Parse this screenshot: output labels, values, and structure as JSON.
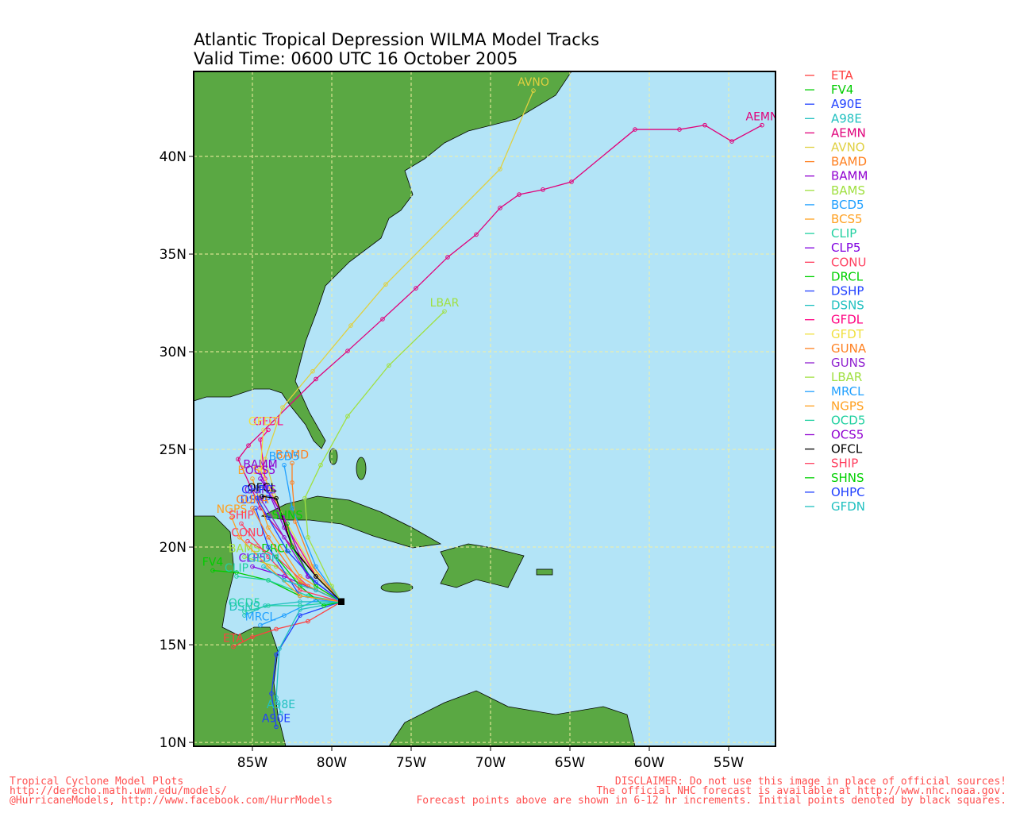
{
  "chart_data": {
    "type": "track-map",
    "title": "Atlantic Tropical Depression WILMA Model Tracks",
    "subtitle": "Valid Time: 0600 UTC 16 October 2005",
    "xlim": [
      -88.7,
      -52.05
    ],
    "ylim": [
      9.8,
      44.35
    ],
    "xticks": [
      {
        "value": -85,
        "label": "85W"
      },
      {
        "value": -80,
        "label": "80W"
      },
      {
        "value": -75,
        "label": "75W"
      },
      {
        "value": -70,
        "label": "70W"
      },
      {
        "value": -65,
        "label": "65W"
      },
      {
        "value": -60,
        "label": "60W"
      },
      {
        "value": -55,
        "label": "55W"
      }
    ],
    "yticks": [
      {
        "value": 10,
        "label": "10N"
      },
      {
        "value": 15,
        "label": "15N"
      },
      {
        "value": 20,
        "label": "20N"
      },
      {
        "value": 25,
        "label": "25N"
      },
      {
        "value": 30,
        "label": "30N"
      },
      {
        "value": 35,
        "label": "35N"
      },
      {
        "value": 40,
        "label": "40N"
      }
    ],
    "grid": true,
    "series": [
      {
        "name": "ETA",
        "color": "#ff4040",
        "lon": [
          -79.4,
          -81.5,
          -83.5,
          -85,
          -86.2
        ],
        "lat": [
          17.2,
          16.2,
          15.8,
          15.4,
          14.9
        ]
      },
      {
        "name": "FV4",
        "color": "#00cc00",
        "lon": [
          -79.4,
          -82,
          -84,
          -86,
          -87.5
        ],
        "lat": [
          17.2,
          17.5,
          18.3,
          18.7,
          18.8
        ]
      },
      {
        "name": "A90E",
        "color": "#2040ff",
        "lon": [
          -79.4,
          -82,
          -83.5,
          -83.8,
          -83.5
        ],
        "lat": [
          17.2,
          16.5,
          14.5,
          12.5,
          10.8
        ]
      },
      {
        "name": "A98E",
        "color": "#20c0c0",
        "lon": [
          -79.4,
          -82,
          -83.3,
          -83.5,
          -83.2
        ],
        "lat": [
          17.2,
          16.8,
          14.8,
          12.3,
          11.5
        ]
      },
      {
        "name": "AEMN",
        "color": "#e0007a",
        "lon": [
          -79.4,
          -82,
          -84.5,
          -85.9,
          -85.25,
          -81,
          -79,
          -76.8,
          -74.7,
          -72.7,
          -70.9,
          -69.4,
          -68.2,
          -66.7,
          -64.9,
          -60.9,
          -58.1,
          -56.5,
          -54.8,
          -52.9
        ],
        "lat": [
          17.2,
          19.5,
          22,
          24.5,
          25.2,
          28.6,
          30.04,
          31.67,
          33.25,
          34.84,
          36.0,
          37.36,
          38.05,
          38.3,
          38.7,
          41.38,
          41.38,
          41.6,
          40.77,
          41.6
        ]
      },
      {
        "name": "AVNO",
        "color": "#e0d040",
        "lon": [
          -79.4,
          -81,
          -82.5,
          -83.5,
          -84.2,
          -83.1,
          -81.2,
          -78.8,
          -76.6,
          -69.4,
          -67.3
        ],
        "lat": [
          17.2,
          18.5,
          20.2,
          22.5,
          24.5,
          27.15,
          29.0,
          31.34,
          33.45,
          39.35,
          43.37
        ]
      },
      {
        "name": "BAMD",
        "color": "#ff8020",
        "lon": [
          -79.4,
          -81.2,
          -82.3,
          -82.5,
          -82.5
        ],
        "lat": [
          17.2,
          19,
          21.3,
          23.3,
          24.3
        ]
      },
      {
        "name": "BAMM",
        "color": "#9000d0",
        "lon": [
          -79.4,
          -81.5,
          -83,
          -84.2,
          -84.5
        ],
        "lat": [
          17.2,
          18.5,
          21,
          23.2,
          23.8
        ]
      },
      {
        "name": "BAMS",
        "color": "#a0e040",
        "lon": [
          -79.4,
          -81.5,
          -83.5,
          -85.5
        ],
        "lat": [
          17.2,
          18,
          19,
          19.5
        ]
      },
      {
        "name": "BCD5",
        "color": "#20a0ff",
        "lon": [
          -79.4,
          -81,
          -82.5,
          -83
        ],
        "lat": [
          17.2,
          19,
          22,
          24.2
        ]
      },
      {
        "name": "BCS5",
        "color": "#ffa020",
        "lon": [
          -79.4,
          -82,
          -84,
          -85
        ],
        "lat": [
          17.2,
          18.5,
          21,
          23.5
        ]
      },
      {
        "name": "CLIP",
        "color": "#20d0a0",
        "lon": [
          -79.4,
          -81.5,
          -84,
          -86
        ],
        "lat": [
          17.2,
          17.5,
          18.3,
          18.5
        ]
      },
      {
        "name": "CLP5",
        "color": "#8000e0",
        "lon": [
          -79.4,
          -81,
          -83,
          -85
        ],
        "lat": [
          17.2,
          17.8,
          18.5,
          19
        ]
      },
      {
        "name": "CONU",
        "color": "#ff4060",
        "lon": [
          -79.4,
          -81.5,
          -83.5,
          -85.3
        ],
        "lat": [
          17.2,
          18,
          19.5,
          20.3
        ]
      },
      {
        "name": "DRCL",
        "color": "#00d000",
        "lon": [
          -79.4,
          -80.5,
          -82,
          -83.5
        ],
        "lat": [
          17.2,
          17,
          18,
          19.5
        ]
      },
      {
        "name": "DSHP",
        "color": "#2040ff",
        "lon": [
          -79.4,
          -82,
          -84,
          -84.8
        ],
        "lat": [
          17.2,
          17.5,
          20,
          22
        ]
      },
      {
        "name": "DSNS",
        "color": "#20c0c0",
        "lon": [
          -79.4,
          -82,
          -84.2,
          -85.5
        ],
        "lat": [
          17.2,
          17.2,
          17,
          16.5
        ]
      },
      {
        "name": "GFDL",
        "color": "#ff0080",
        "lon": [
          -79.4,
          -81,
          -82.8,
          -84.2,
          -84.5,
          -84
        ],
        "lat": [
          17.2,
          18.5,
          21,
          23.5,
          25.5,
          26
        ]
      },
      {
        "name": "GFDT",
        "color": "#f0e040",
        "lon": [
          -79.4,
          -81,
          -83,
          -84.5,
          -84.3
        ],
        "lat": [
          17.2,
          18.6,
          21.5,
          24,
          26
        ]
      },
      {
        "name": "GUNA",
        "color": "#ff8020",
        "lon": [
          -79.4,
          -82,
          -84,
          -85
        ],
        "lat": [
          17.2,
          18.2,
          20.5,
          22
        ]
      },
      {
        "name": "GUNS",
        "color": "#9020d0",
        "lon": [
          -79.4,
          -81.5,
          -83,
          -84.5
        ],
        "lat": [
          17.2,
          18.5,
          20.5,
          22.5
        ]
      },
      {
        "name": "LBAR",
        "color": "#a0e040",
        "lon": [
          -79.4,
          -80,
          -81.5,
          -81.7,
          -80.7,
          -79,
          -76.4,
          -72.9
        ],
        "lat": [
          17.2,
          18,
          20.5,
          22.5,
          24.2,
          26.7,
          29.3,
          32.07
        ]
      },
      {
        "name": "MRCL",
        "color": "#20a0ff",
        "lon": [
          -79.4,
          -81,
          -83,
          -84.5
        ],
        "lat": [
          17.2,
          17.3,
          16.5,
          16
        ]
      },
      {
        "name": "NGPS",
        "color": "#ffa020",
        "lon": [
          -79.4,
          -82,
          -84,
          -85.8,
          -86.3
        ],
        "lat": [
          17.2,
          17.5,
          19,
          20.5,
          21.5
        ]
      },
      {
        "name": "OCD5",
        "color": "#20d0a0",
        "lon": [
          -79.4,
          -82,
          -84,
          -85.5
        ],
        "lat": [
          17.2,
          17,
          17,
          16.7
        ]
      },
      {
        "name": "OCS5",
        "color": "#9000d0",
        "lon": [
          -79.4,
          -81.5,
          -83,
          -84.5
        ],
        "lat": [
          17.2,
          18.5,
          21.5,
          23.5
        ]
      },
      {
        "name": "OFCL",
        "color": "#000000",
        "lon": [
          -79.4,
          -81,
          -82.5,
          -83.5,
          -84.4
        ],
        "lat": [
          17.2,
          18.5,
          20,
          22.5,
          22.6
        ]
      },
      {
        "name": "SHIP",
        "color": "#ff4060",
        "lon": [
          -79.4,
          -82,
          -84,
          -85.7
        ],
        "lat": [
          17.2,
          17.8,
          19.5,
          21.2
        ]
      },
      {
        "name": "SHNS",
        "color": "#00d000",
        "lon": [
          -79.4,
          -81,
          -82.5,
          -82.8
        ],
        "lat": [
          17.2,
          18,
          20,
          21.2
        ]
      },
      {
        "name": "OHPC",
        "color": "#2040ff",
        "lon": [
          -79.4,
          -81,
          -82.8,
          -84,
          -84.7
        ],
        "lat": [
          17.2,
          18.2,
          19.8,
          21.5,
          22.5
        ]
      },
      {
        "name": "GFDN",
        "color": "#20c0c0",
        "lon": [
          -79.4,
          -81,
          -83,
          -84.3
        ],
        "lat": [
          17.2,
          17.8,
          18.3,
          19
        ]
      }
    ],
    "footer_left": [
      "Tropical Cyclone Model Plots",
      "http://derecho.math.uwm.edu/models/",
      "@HurricaneModels, http://www.facebook.com/HurrModels"
    ],
    "footer_right": [
      "DISCLAIMER: Do not use this image in place of official sources!",
      "The official NHC forecast is available at http://www.nhc.noaa.gov.",
      "Forecast points above are shown in 6-12 hr increments. Initial points denoted by black squares."
    ]
  }
}
